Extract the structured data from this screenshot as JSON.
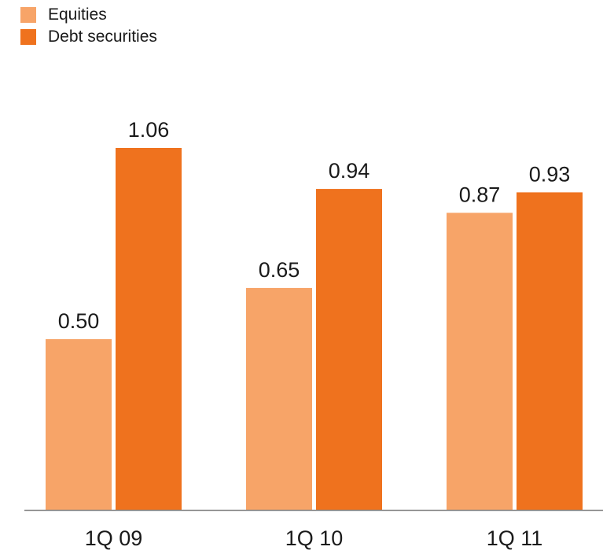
{
  "chart_data": {
    "type": "bar",
    "categories": [
      "1Q 09",
      "1Q 10",
      "1Q 11"
    ],
    "series": [
      {
        "name": "Equities",
        "values": [
          0.5,
          0.65,
          0.87
        ],
        "labels": [
          "0.50",
          "0.65",
          "0.87"
        ],
        "color": "#f7a468"
      },
      {
        "name": "Debt securities",
        "values": [
          1.06,
          0.94,
          0.93
        ],
        "labels": [
          "1.06",
          "0.94",
          "0.93"
        ],
        "color": "#ef721e"
      }
    ],
    "title": "",
    "xlabel": "",
    "ylabel": "",
    "ylim": [
      0,
      1.06
    ],
    "grid": false,
    "legend_position": "top-left",
    "axis_color": "#808080"
  }
}
